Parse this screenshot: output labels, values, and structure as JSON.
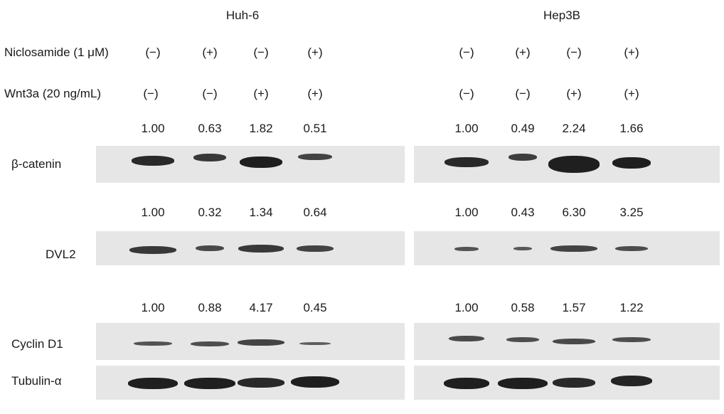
{
  "cell_lines": [
    "Huh-6",
    "Hep3B"
  ],
  "treatments": [
    {
      "label": "Niclosamide (1 μM)",
      "values": [
        "(−)",
        "(+)",
        "(−)",
        "(+)",
        "(−)",
        "(+)",
        "(−)",
        "(+)"
      ]
    },
    {
      "label": "Wnt3a (20 ng/mL)",
      "values": [
        "(−)",
        "(−)",
        "(+)",
        "(+)",
        "(−)",
        "(−)",
        "(+)",
        "(+)"
      ]
    }
  ],
  "blots": [
    {
      "protein": "β-catenin",
      "quant": [
        "1.00",
        "0.63",
        "1.82",
        "0.51",
        "1.00",
        "0.49",
        "2.24",
        "1.66"
      ]
    },
    {
      "protein": "DVL2",
      "quant": [
        "1.00",
        "0.32",
        "1.34",
        "0.64",
        "1.00",
        "0.43",
        "6.30",
        "3.25"
      ]
    },
    {
      "protein": "Cyclin D1",
      "quant": [
        "1.00",
        "0.88",
        "4.17",
        "0.45",
        "1.00",
        "0.58",
        "1.57",
        "1.22"
      ]
    },
    {
      "protein": "Tubulin-α",
      "quant": []
    }
  ]
}
